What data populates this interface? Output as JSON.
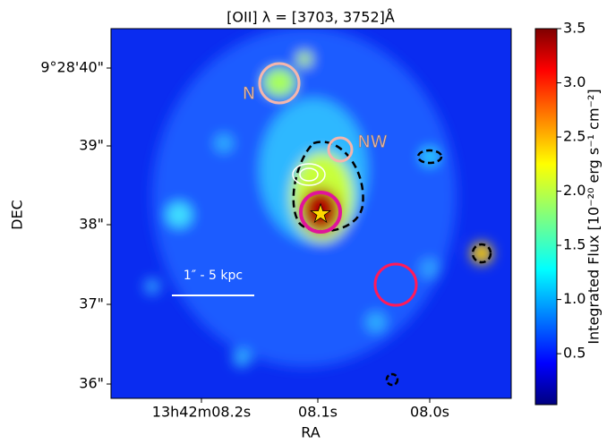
{
  "chart_data": {
    "type": "image",
    "title": "[OII] λ = [3703, 3752]Å",
    "xlabel": "RA",
    "ylabel": "DEC",
    "xtick_labels": [
      "13h42m08.2s",
      "08.1s",
      "08.0s"
    ],
    "ytick_labels": [
      "9°28'40\"",
      "39\"",
      "38\"",
      "37\"",
      "36\""
    ],
    "annotations": [
      "N",
      "NW"
    ],
    "scale_bar": "1″ - 5 kpc",
    "colorbar": {
      "label": "Integrated Flux [10⁻²⁰ erg s⁻¹ cm⁻²]",
      "colormap": "jet",
      "clim": [
        0.03,
        3.5
      ],
      "ticks": [
        0.5,
        {
          "value": 1,
          "label": "1.0"
        },
        1.5,
        {
          "value": 2,
          "label": "2.0"
        },
        2.5,
        {
          "value": 3,
          "label": "3.0"
        },
        3.5
      ]
    }
  }
}
